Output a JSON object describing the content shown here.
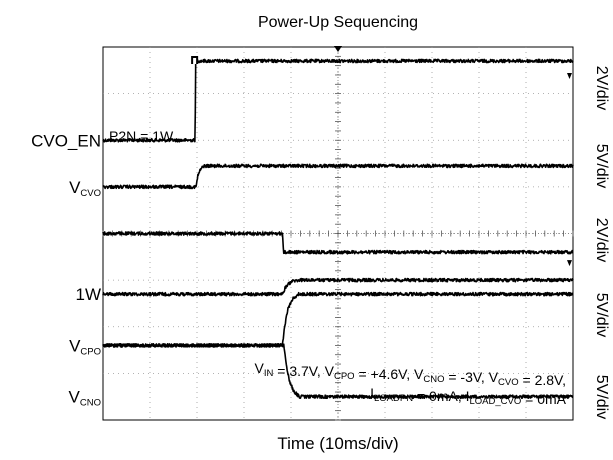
{
  "chart_data": {
    "type": "line",
    "title": "Power-Up Sequencing",
    "xlabel": "Time (10ms/div)",
    "x_units": "ms",
    "xlim": [
      0,
      100
    ],
    "x_divisions": 10,
    "y_divisions": 8,
    "grid": true,
    "annotation_p2n": "P2N = 1W",
    "conditions_line1": [
      {
        "main": "V",
        "sub": "IN"
      },
      {
        "main": " = 3.7V, V"
      },
      {
        "sub": "CPO"
      },
      {
        "main": " = +4.6V, V"
      },
      {
        "sub": "CNO"
      },
      {
        "main": " = -3V, V"
      },
      {
        "sub": "CVO"
      },
      {
        "main": " = 2.8V,"
      }
    ],
    "conditions_line2": [
      {
        "main": "I",
        "sub": "LOADPN"
      },
      {
        "main": " = 0mA, I"
      },
      {
        "sub": "LOAD_CVO"
      },
      {
        "main": " = 0mA"
      }
    ],
    "scale_labels": [
      "2V/div",
      "5V/div",
      "2V/div",
      "5V/div",
      "5V/div"
    ],
    "series": [
      {
        "name": "CVO_EN",
        "label_main": "CVO_EN",
        "label_sub": "",
        "low_div": 6.0,
        "high_div": 7.7,
        "x": [
          0,
          19.6,
          19.7,
          100
        ],
        "y": [
          0,
          0,
          1,
          1
        ]
      },
      {
        "name": "VCVO",
        "label_main": "V",
        "label_sub": "CVO",
        "low_div": 5.0,
        "high_div": 5.45,
        "x": [
          0,
          19.8,
          20.2,
          20.8,
          21.5,
          100
        ],
        "y": [
          0,
          0,
          0.55,
          0.85,
          1,
          1
        ]
      },
      {
        "name": "CVO",
        "label_main": "",
        "label_sub": "",
        "low_div": 3.6,
        "high_div": 4.0,
        "x": [
          0,
          38.2,
          38.4,
          100
        ],
        "y": [
          1,
          1,
          0,
          0
        ]
      },
      {
        "name": "1W",
        "label_main": "1W",
        "label_sub": "",
        "low_div": 2.7,
        "high_div": 3.0,
        "x": [
          0,
          38.2,
          38.7,
          39.3,
          40.2,
          41.5,
          100
        ],
        "y": [
          0,
          0,
          0.4,
          0.7,
          0.9,
          1,
          1
        ]
      },
      {
        "name": "VCPO",
        "label_main": "V",
        "label_sub": "CPO",
        "low_div": 1.6,
        "high_div": 2.7,
        "x": [
          0,
          38.2,
          38.6,
          39.3,
          40.3,
          41.5,
          100
        ],
        "y": [
          0,
          0,
          0.35,
          0.7,
          0.9,
          1,
          1
        ]
      },
      {
        "name": "VCNO",
        "label_main": "V",
        "label_sub": "CNO",
        "low_div": 0.5,
        "high_div": 1.6,
        "x": [
          0,
          38.5,
          39.0,
          39.7,
          40.6,
          41.8,
          100
        ],
        "y": [
          1,
          1,
          0.6,
          0.3,
          0.1,
          0,
          0
        ]
      }
    ]
  }
}
